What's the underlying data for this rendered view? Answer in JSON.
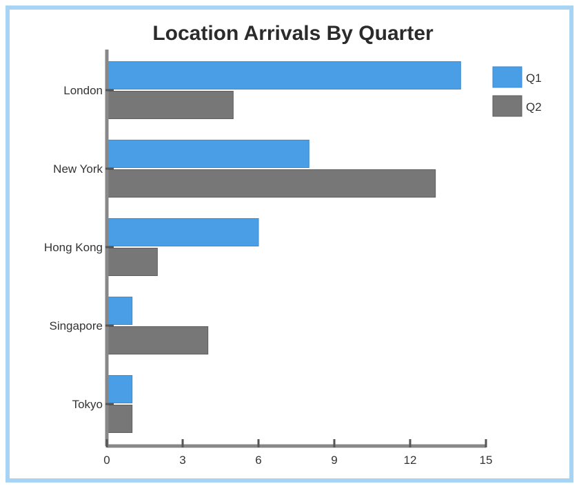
{
  "chart_data": {
    "type": "bar",
    "orientation": "horizontal",
    "title": "Location Arrivals By Quarter",
    "categories": [
      "London",
      "New York",
      "Hong Kong",
      "Singapore",
      "Tokyo"
    ],
    "series": [
      {
        "name": "Q1",
        "values": [
          14,
          8,
          6,
          1,
          1
        ]
      },
      {
        "name": "Q2",
        "values": [
          5,
          13,
          2,
          4,
          1
        ]
      }
    ],
    "x_ticks": [
      0,
      3,
      6,
      9,
      12,
      15
    ],
    "xlim": [
      0,
      15
    ],
    "grid": false,
    "legend_position": "top-right",
    "colors": {
      "Q1": "#4a9ee6",
      "Q2": "#777777",
      "frame": "#a8d4f3",
      "axis": "#888888"
    }
  }
}
